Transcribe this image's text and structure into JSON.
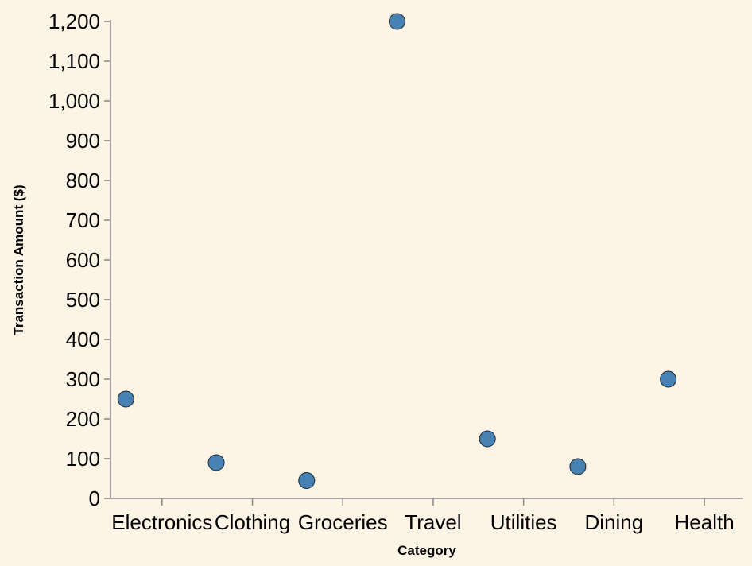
{
  "chart_data": {
    "type": "scatter",
    "categories": [
      "Electronics",
      "Clothing",
      "Groceries",
      "Travel",
      "Utilities",
      "Dining",
      "Health"
    ],
    "values": [
      250,
      90,
      45,
      1200,
      150,
      80,
      300
    ],
    "xlabel": "Category",
    "ylabel": "Transaction Amount ($)",
    "ylim": [
      0,
      1200
    ],
    "yticks": [
      "0",
      "100",
      "200",
      "300",
      "400",
      "500",
      "600",
      "700",
      "800",
      "900",
      "1,000",
      "1,100",
      "1,200"
    ],
    "grid": false,
    "point_color": "#4682b4",
    "background": "#fdf4e6"
  }
}
